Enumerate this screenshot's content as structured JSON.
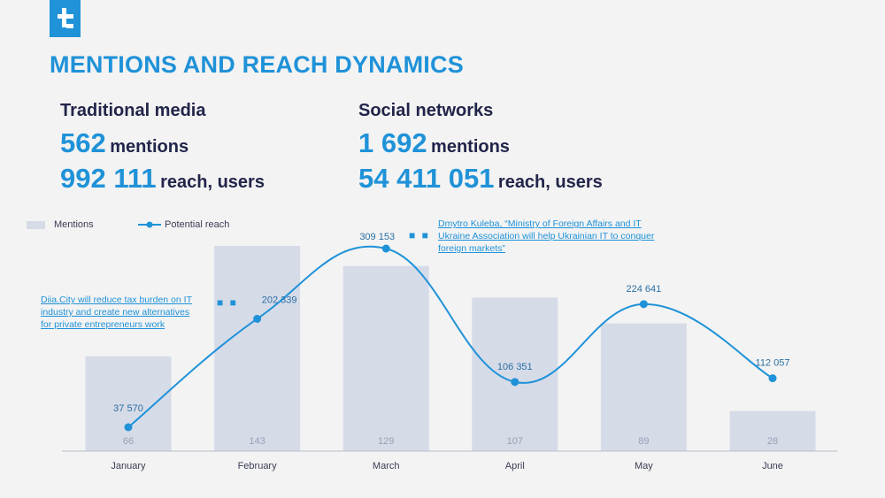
{
  "brand": {
    "accent": "#1f92d8",
    "dark": "#22254a",
    "bar": "#d6dbe8"
  },
  "logo": {
    "icon": "brand-logo-icon"
  },
  "title": "MENTIONS AND REACH DYNAMICS",
  "traditional": {
    "heading": "Traditional media",
    "mentions_num": "562",
    "mentions_unit": "mentions",
    "reach_num": "992 111",
    "reach_unit": "reach, users"
  },
  "social": {
    "heading": "Social networks",
    "mentions_num": "1 692",
    "mentions_unit": "mentions",
    "reach_num": "54 411 051",
    "reach_unit": "reach, users"
  },
  "legend": {
    "mentions": "Mentions",
    "reach": "Potential reach"
  },
  "annotations": {
    "diia": [
      "Diia.City will reduce tax burden on IT",
      "industry and create new alternatives",
      "for private entrepreneurs work"
    ],
    "kuleba": [
      "Dmytro Kuleba, “Ministry of Foreign Affairs and IT",
      "Ukraine Association will help Ukrainian IT to conquer",
      "foreign markets”"
    ],
    "dots": "■ ■"
  },
  "chart_data": {
    "type": "bar",
    "categories": [
      "January",
      "February",
      "March",
      "April",
      "May",
      "June"
    ],
    "series": [
      {
        "name": "Mentions",
        "type": "bar",
        "values": [
          66,
          143,
          129,
          107,
          89,
          28
        ],
        "labels": [
          "66",
          "143",
          "129",
          "107",
          "89",
          "28"
        ]
      },
      {
        "name": "Potential reach",
        "type": "line",
        "values": [
          37570,
          202339,
          309153,
          106351,
          224641,
          112057
        ],
        "labels": [
          "37 570",
          "202 339",
          "309 153",
          "106 351",
          "224 641",
          "112 057"
        ]
      }
    ],
    "legend": "top-left",
    "grid": false
  }
}
